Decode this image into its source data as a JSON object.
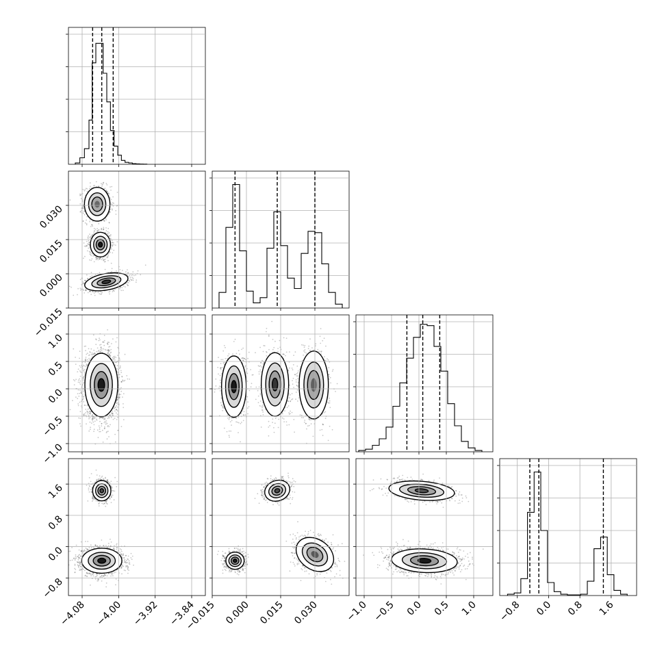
{
  "chart_data": {
    "type": "corner",
    "grid": true,
    "parameters": [
      {
        "name": "",
        "range": [
          -4.11,
          -3.81
        ],
        "ticks": [
          -4.08,
          -4.0,
          -3.92,
          -3.84
        ],
        "tick_labels": [
          "−4.08",
          "−4.00",
          "−3.92",
          "−3.84"
        ],
        "quantiles": [
          -4.057,
          -4.037,
          -4.012
        ],
        "hist_ymax": 1.0,
        "hist_edges": [
          -4.095,
          -4.085,
          -4.075,
          -4.065,
          -4.058,
          -4.05,
          -4.042,
          -4.034,
          -4.026,
          -4.018,
          -4.01,
          -4.002,
          -3.994,
          -3.986,
          -3.978,
          -3.97,
          -3.962,
          -3.954,
          -3.946,
          -3.938
        ],
        "hist": [
          0.01,
          0.05,
          0.12,
          0.34,
          0.78,
          0.93,
          0.93,
          0.7,
          0.48,
          0.26,
          0.14,
          0.07,
          0.03,
          0.015,
          0.01,
          0.005,
          0.003,
          0.002,
          0.001
        ]
      },
      {
        "name": "",
        "range": [
          -0.015,
          0.045
        ],
        "ticks": [
          -0.015,
          0.0,
          0.015,
          0.03
        ],
        "tick_labels": [
          "−0.015",
          "0.000",
          "0.015",
          "0.030"
        ],
        "quantiles": [
          -0.005,
          0.0135,
          0.03
        ],
        "hist_ymax": 1.0,
        "hist_edges": [
          -0.012,
          -0.009,
          -0.006,
          -0.003,
          0.0,
          0.003,
          0.006,
          0.009,
          0.012,
          0.015,
          0.018,
          0.021,
          0.024,
          0.027,
          0.03,
          0.033,
          0.036,
          0.039,
          0.042
        ],
        "hist": [
          0.12,
          0.62,
          0.95,
          0.44,
          0.13,
          0.04,
          0.08,
          0.46,
          0.74,
          0.48,
          0.23,
          0.15,
          0.42,
          0.59,
          0.58,
          0.34,
          0.12,
          0.03
        ]
      },
      {
        "name": "",
        "range": [
          -1.15,
          1.35
        ],
        "ticks": [
          -1.0,
          -0.5,
          0.0,
          0.5,
          1.0
        ],
        "tick_labels": [
          "−1.0",
          "−0.5",
          "0.0",
          "0.5",
          "1.0"
        ],
        "quantiles": [
          -0.22,
          0.07,
          0.38
        ],
        "hist_ymax": 1.0,
        "hist_edges": [
          -1.1,
          -0.975,
          -0.85,
          -0.725,
          -0.6,
          -0.475,
          -0.35,
          -0.225,
          -0.1,
          0.025,
          0.15,
          0.275,
          0.4,
          0.525,
          0.65,
          0.775,
          0.9,
          1.025,
          1.15
        ],
        "hist": [
          0.01,
          0.02,
          0.05,
          0.1,
          0.19,
          0.35,
          0.53,
          0.72,
          0.88,
          0.98,
          0.97,
          0.81,
          0.62,
          0.37,
          0.2,
          0.08,
          0.03,
          0.01
        ]
      },
      {
        "name": "",
        "range": [
          -1.25,
          2.25
        ],
        "ticks": [
          -0.8,
          0.0,
          0.8,
          1.6
        ],
        "tick_labels": [
          "−0.8",
          "0.0",
          "0.8",
          "1.6"
        ],
        "quantiles": [
          -0.48,
          -0.25,
          1.4
        ],
        "hist_ymax": 1.0,
        "hist_edges": [
          -1.05,
          -0.88,
          -0.71,
          -0.54,
          -0.37,
          -0.2,
          -0.03,
          0.14,
          0.31,
          0.48,
          0.65,
          0.82,
          0.99,
          1.16,
          1.33,
          1.5,
          1.67,
          1.84,
          2.01
        ],
        "hist": [
          0.01,
          0.02,
          0.13,
          0.64,
          0.95,
          0.5,
          0.1,
          0.03,
          0.01,
          0.005,
          0.005,
          0.01,
          0.11,
          0.36,
          0.45,
          0.16,
          0.04,
          0.01
        ]
      }
    ],
    "pairs": [
      {
        "row": 1,
        "col": 0,
        "blobs": [
          {
            "cx": -4.047,
            "cy": 0.0305,
            "sx": 0.014,
            "sy": 0.0037,
            "rot": 0,
            "w": 0.9,
            "peak": 0.45
          },
          {
            "cx": -4.04,
            "cy": 0.0128,
            "sx": 0.011,
            "sy": 0.0027,
            "rot": 0,
            "w": 1.0,
            "peak": 1.0
          },
          {
            "cx": -4.027,
            "cy": -0.0035,
            "sx": 0.024,
            "sy": 0.0018,
            "rot": 0.18,
            "w": 0.9,
            "peak": 0.8
          }
        ]
      },
      {
        "row": 2,
        "col": 0,
        "blobs": [
          {
            "cx": -4.038,
            "cy": 0.07,
            "sx": 0.018,
            "sy": 0.29,
            "rot": 0,
            "w": 1.0,
            "peak": 1.0
          }
        ]
      },
      {
        "row": 2,
        "col": 1,
        "blobs": [
          {
            "cx": -0.0055,
            "cy": 0.04,
            "sx": 0.0027,
            "sy": 0.28,
            "rot": 0,
            "w": 1.0,
            "peak": 1.0
          },
          {
            "cx": 0.0125,
            "cy": 0.08,
            "sx": 0.003,
            "sy": 0.29,
            "rot": 0,
            "w": 0.9,
            "peak": 0.8
          },
          {
            "cx": 0.0295,
            "cy": 0.07,
            "sx": 0.0032,
            "sy": 0.31,
            "rot": 0,
            "w": 0.85,
            "peak": 0.5
          }
        ]
      },
      {
        "row": 3,
        "col": 0,
        "blobs": [
          {
            "cx": -4.037,
            "cy": 1.43,
            "sx": 0.01,
            "sy": 0.13,
            "rot": 0,
            "w": 0.45,
            "peak": 0.65
          },
          {
            "cx": -4.037,
            "cy": -0.36,
            "sx": 0.022,
            "sy": 0.16,
            "rot": 0,
            "w": 1.0,
            "peak": 1.0
          }
        ]
      },
      {
        "row": 3,
        "col": 1,
        "blobs": [
          {
            "cx": 0.0135,
            "cy": 1.43,
            "sx": 0.0028,
            "sy": 0.13,
            "rot": 0.35,
            "w": 0.45,
            "peak": 0.65
          },
          {
            "cx": -0.005,
            "cy": -0.36,
            "sx": 0.002,
            "sy": 0.11,
            "rot": 0,
            "w": 0.75,
            "peak": 1.0
          },
          {
            "cx": 0.03,
            "cy": -0.2,
            "sx": 0.0033,
            "sy": 0.26,
            "rot": 0.95,
            "w": 0.65,
            "peak": 0.55
          }
        ]
      },
      {
        "row": 3,
        "col": 2,
        "blobs": [
          {
            "cx": 0.05,
            "cy": 1.43,
            "sx": 0.3,
            "sy": 0.12,
            "rot": -0.08,
            "w": 0.45,
            "peak": 0.6
          },
          {
            "cx": 0.1,
            "cy": -0.36,
            "sx": 0.3,
            "sy": 0.15,
            "rot": -0.05,
            "w": 1.0,
            "peak": 1.0
          }
        ]
      }
    ]
  }
}
